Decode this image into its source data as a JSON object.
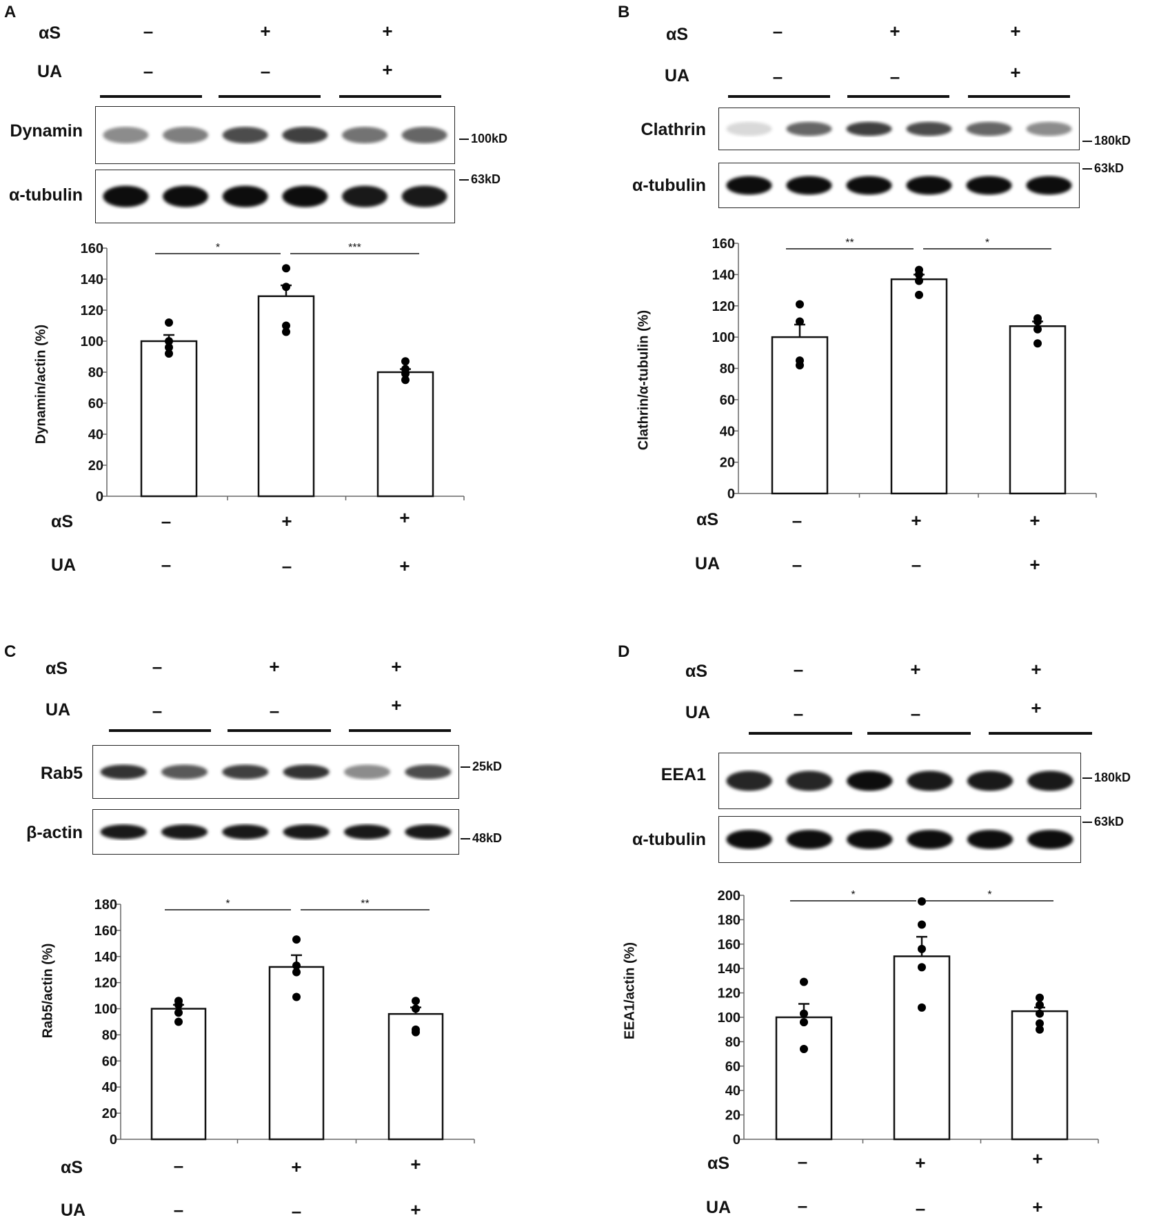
{
  "symbols": {
    "plus": "+",
    "minus": "–"
  },
  "panels": [
    {
      "letter": "A",
      "conditions": {
        "label_row1": "αS",
        "label_row2": "UA",
        "row1": [
          "minus",
          "plus",
          "plus"
        ],
        "row2": [
          "minus",
          "minus",
          "plus"
        ]
      },
      "blots": [
        {
          "label": "Dynamin",
          "mw": "100kD",
          "band_intensity": [
            0.45,
            0.5,
            0.7,
            0.75,
            0.55,
            0.6
          ],
          "band_width": 0.5
        },
        {
          "label": "α-tubulin",
          "mw": "63kD",
          "band_intensity": [
            0.95,
            0.95,
            0.95,
            0.95,
            0.9,
            0.9
          ],
          "band_width": 0.75
        }
      ],
      "chart_data": {
        "type": "bar",
        "ylabel": "Dynamin/actin (%)",
        "ylim": [
          0,
          160
        ],
        "yticks": [
          "0",
          "20",
          "40",
          "60",
          "80",
          "100",
          "120",
          "140",
          "160"
        ],
        "values": [
          100,
          129,
          80
        ],
        "errors": [
          4,
          7,
          2
        ],
        "points": [
          [
            112,
            100,
            96,
            92
          ],
          [
            147,
            135,
            110,
            106
          ],
          [
            87,
            82,
            79,
            75
          ]
        ],
        "significance": [
          {
            "from": 0,
            "to": 1,
            "label": "*"
          },
          {
            "from": 1,
            "to": 2,
            "label": "***"
          }
        ]
      }
    },
    {
      "letter": "B",
      "conditions": {
        "label_row1": "αS",
        "label_row2": "UA",
        "row1": [
          "minus",
          "plus",
          "plus"
        ],
        "row2": [
          "minus",
          "minus",
          "plus"
        ]
      },
      "blots": [
        {
          "label": "Clathrin",
          "mw": "180kD",
          "band_intensity": [
            0.15,
            0.6,
            0.75,
            0.7,
            0.6,
            0.45
          ],
          "band_width": 0.55
        },
        {
          "label": "α-tubulin",
          "mw": "63kD",
          "band_intensity": [
            0.95,
            0.95,
            0.95,
            0.95,
            0.95,
            0.95
          ],
          "band_width": 0.75
        }
      ],
      "chart_data": {
        "type": "bar",
        "ylabel": "Clathrin/α-tubulin (%)",
        "ylim": [
          0,
          160
        ],
        "yticks": [
          "0",
          "20",
          "40",
          "60",
          "80",
          "100",
          "120",
          "140",
          "160"
        ],
        "values": [
          100,
          137,
          107
        ],
        "errors": [
          8,
          3,
          3
        ],
        "points": [
          [
            121,
            110,
            85,
            82
          ],
          [
            143,
            140,
            136,
            127
          ],
          [
            112,
            110,
            105,
            96
          ]
        ],
        "significance": [
          {
            "from": 0,
            "to": 1,
            "label": "**"
          },
          {
            "from": 1,
            "to": 2,
            "label": "*"
          }
        ]
      }
    },
    {
      "letter": "C",
      "conditions": {
        "label_row1": "αS",
        "label_row2": "UA",
        "row1": [
          "minus",
          "plus",
          "plus"
        ],
        "row2": [
          "minus",
          "minus",
          "plus"
        ]
      },
      "blots": [
        {
          "label": "Rab5",
          "mw": "25kD",
          "band_intensity": [
            0.8,
            0.65,
            0.75,
            0.8,
            0.45,
            0.7
          ],
          "band_width": 0.45
        },
        {
          "label": "β-actin",
          "mw": "48kD",
          "band_intensity": [
            0.9,
            0.9,
            0.9,
            0.9,
            0.9,
            0.9
          ],
          "band_width": 0.55
        }
      ],
      "chart_data": {
        "type": "bar",
        "ylabel": "Rab5/actin (%)",
        "ylim": [
          0,
          180
        ],
        "yticks": [
          "0",
          "20",
          "40",
          "60",
          "80",
          "100",
          "120",
          "140",
          "160",
          "180"
        ],
        "values": [
          100,
          132,
          96
        ],
        "errors": [
          3,
          9,
          5
        ],
        "points": [
          [
            106,
            103,
            97,
            90
          ],
          [
            153,
            133,
            128,
            109
          ],
          [
            106,
            100,
            84,
            82
          ]
        ],
        "significance": [
          {
            "from": 0,
            "to": 1,
            "label": "*"
          },
          {
            "from": 1,
            "to": 2,
            "label": "**"
          }
        ]
      }
    },
    {
      "letter": "D",
      "conditions": {
        "label_row1": "αS",
        "label_row2": "UA",
        "row1": [
          "minus",
          "plus",
          "plus"
        ],
        "row2": [
          "minus",
          "minus",
          "plus"
        ]
      },
      "blots": [
        {
          "label": "EEA1",
          "mw": "180kD",
          "band_intensity": [
            0.85,
            0.85,
            0.95,
            0.9,
            0.9,
            0.9
          ],
          "band_width": 0.65
        },
        {
          "label": "α-tubulin",
          "mw": "63kD",
          "band_intensity": [
            0.95,
            0.95,
            0.95,
            0.95,
            0.95,
            0.95
          ],
          "band_width": 0.75
        }
      ],
      "chart_data": {
        "type": "bar",
        "ylabel": "EEA1/actin (%)",
        "ylim": [
          0,
          200
        ],
        "yticks": [
          "0",
          "20",
          "40",
          "60",
          "80",
          "100",
          "120",
          "140",
          "160",
          "180",
          "200"
        ],
        "values": [
          100,
          150,
          105
        ],
        "errors": [
          11,
          16,
          3
        ],
        "points": [
          [
            129,
            103,
            96,
            74
          ],
          [
            195,
            176,
            156,
            141,
            108
          ],
          [
            116,
            110,
            103,
            95,
            90
          ]
        ],
        "significance": [
          {
            "from": 0,
            "to": 1,
            "label": "*"
          },
          {
            "from": 1,
            "to": 2,
            "label": "*"
          }
        ]
      }
    }
  ]
}
